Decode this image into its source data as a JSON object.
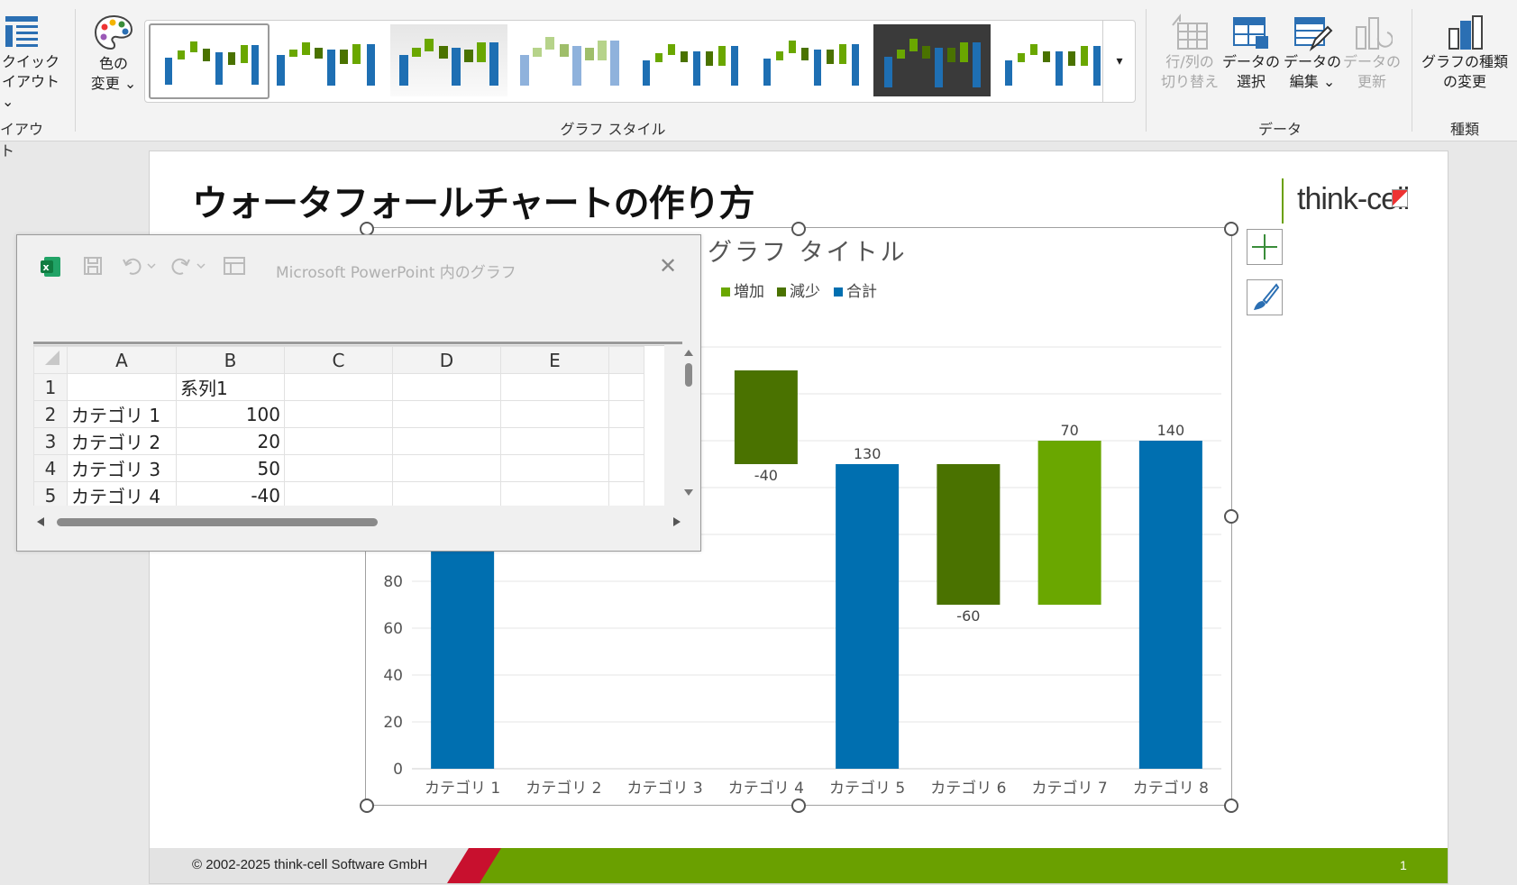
{
  "ribbon": {
    "quick_layout_line1": "クイック",
    "quick_layout_line2": "イアウト",
    "layout_group": "イアウト",
    "change_color_line1": "色の",
    "change_color_line2": "変更",
    "styles_group": "グラフ スタイル",
    "switch_rowcol_line1": "行/列の",
    "switch_rowcol_line2": "切り替え",
    "select_data_line1": "データの",
    "select_data_line2": "選択",
    "edit_data_line1": "データの",
    "edit_data_line2": "編集",
    "refresh_data_line1": "データの",
    "refresh_data_line2": "更新",
    "data_group": "データ",
    "change_type_line1": "グラフの種類",
    "change_type_line2": "の変更",
    "type_group": "種類",
    "more_glyph": "▾"
  },
  "slide": {
    "title": "ウォータフォールチャートの作り方",
    "logo": "think-cell",
    "footer_copyright": "© 2002-2025 think-cell Software GmbH",
    "page_number": "1"
  },
  "excel": {
    "title": "Microsoft PowerPoint 内のグラフ",
    "close_glyph": "✕",
    "columns": [
      "A",
      "B",
      "C",
      "D",
      "E"
    ],
    "rows": [
      {
        "num": "1",
        "a": "",
        "b": "系列1"
      },
      {
        "num": "2",
        "a": "カテゴリ 1",
        "b": "100"
      },
      {
        "num": "3",
        "a": "カテゴリ 2",
        "b": "20"
      },
      {
        "num": "4",
        "a": "カテゴリ 3",
        "b": "50"
      },
      {
        "num": "5",
        "a": "カテゴリ 4",
        "b": "-40"
      }
    ]
  },
  "colors": {
    "increase": "#6aa700",
    "decrease": "#4a7200",
    "total": "#006fb0"
  },
  "chart_data": {
    "type": "bar",
    "title": "グラフ タイトル",
    "legend": [
      "増加",
      "減少",
      "合計"
    ],
    "legend_position": "top",
    "categories": [
      "カテゴリ 1",
      "カテゴリ 2",
      "カテゴリ 3",
      "カテゴリ 4",
      "カテゴリ 5",
      "カテゴリ 6",
      "カテゴリ 7",
      "カテゴリ 8"
    ],
    "waterfall": [
      {
        "category": "カテゴリ 1",
        "kind": "total",
        "low": 0,
        "high": 100,
        "label": ""
      },
      {
        "category": "カテゴリ 2",
        "kind": "increase",
        "low": 100,
        "high": 120,
        "label": ""
      },
      {
        "category": "カテゴリ 3",
        "kind": "increase",
        "low": 120,
        "high": 170,
        "label": ""
      },
      {
        "category": "カテゴリ 4",
        "kind": "decrease",
        "low": 130,
        "high": 170,
        "label": "-40"
      },
      {
        "category": "カテゴリ 5",
        "kind": "total",
        "low": 0,
        "high": 130,
        "label": "130"
      },
      {
        "category": "カテゴリ 6",
        "kind": "decrease",
        "low": 70,
        "high": 130,
        "label": "-60"
      },
      {
        "category": "カテゴリ 7",
        "kind": "increase",
        "low": 70,
        "high": 140,
        "label": "70"
      },
      {
        "category": "カテゴリ 8",
        "kind": "total",
        "low": 0,
        "high": 140,
        "label": "140"
      }
    ],
    "ylim": [
      0,
      180
    ],
    "yticks": [
      "0",
      "20",
      "40",
      "60",
      "80"
    ],
    "grid": true
  }
}
